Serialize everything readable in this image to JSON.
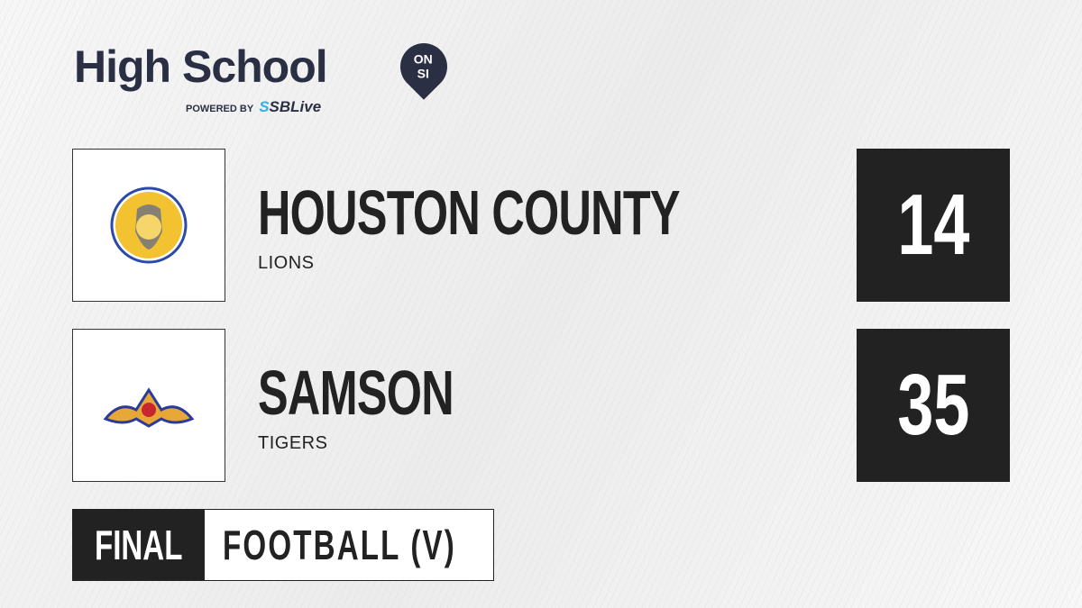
{
  "brand": {
    "title": "High School",
    "badge_line1": "ON",
    "badge_line2": "SI",
    "powered_by": "POWERED BY",
    "partner_s": "S",
    "partner": "SBLive"
  },
  "teams": [
    {
      "name": "HOUSTON COUNTY",
      "mascot": "LIONS",
      "score": "14",
      "logo_icon": "lion-logo"
    },
    {
      "name": "SAMSON",
      "mascot": "TIGERS",
      "score": "35",
      "logo_icon": "tiger-logo"
    }
  ],
  "status": {
    "state": "FINAL",
    "sport": "FOOTBALL (V)"
  },
  "colors": {
    "brand_navy": "#2b2f44",
    "sblive_blue": "#2fb1e6",
    "dark": "#222222"
  }
}
